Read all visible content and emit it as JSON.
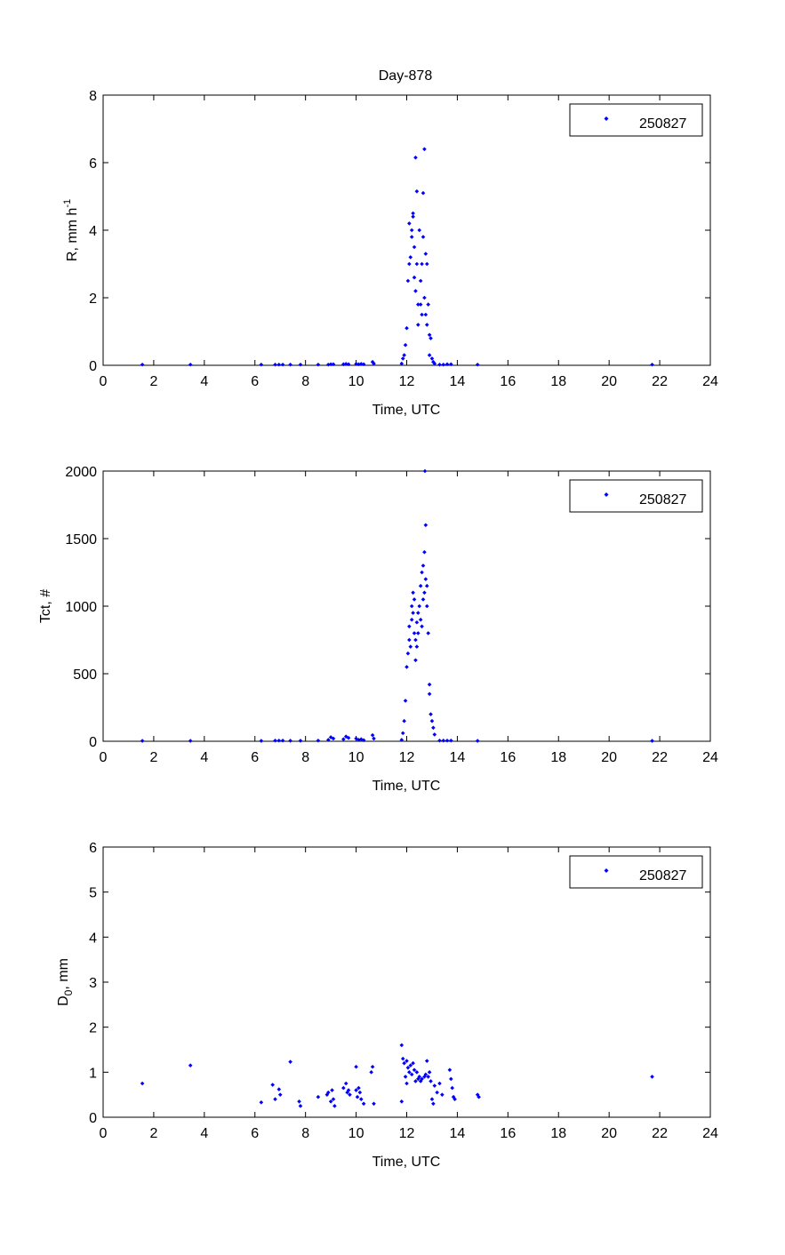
{
  "figure": {
    "title": "Day-878"
  },
  "chart_data": [
    {
      "type": "scatter",
      "title": "Day-878",
      "xlabel": "Time, UTC",
      "ylabel": "R, mm h",
      "ylabel_sup": "-1",
      "xlim": [
        0,
        24
      ],
      "ylim": [
        0,
        8
      ],
      "xticks": [
        "0",
        "2",
        "4",
        "6",
        "8",
        "10",
        "12",
        "14",
        "16",
        "18",
        "20",
        "22",
        "24"
      ],
      "yticks": [
        "0",
        "2",
        "4",
        "6",
        "8"
      ],
      "legend": {
        "entries": [
          "250827"
        ],
        "placement": "top-right"
      },
      "marker_color": "#0000ff",
      "series": [
        {
          "name": "250827",
          "points": [
            [
              1.55,
              0.02
            ],
            [
              3.45,
              0.02
            ],
            [
              6.25,
              0.02
            ],
            [
              6.8,
              0.02
            ],
            [
              6.95,
              0.02
            ],
            [
              7.1,
              0.02
            ],
            [
              7.4,
              0.02
            ],
            [
              7.8,
              0.02
            ],
            [
              8.5,
              0.02
            ],
            [
              8.9,
              0.02
            ],
            [
              9.0,
              0.03
            ],
            [
              9.1,
              0.03
            ],
            [
              9.5,
              0.03
            ],
            [
              9.6,
              0.04
            ],
            [
              9.7,
              0.03
            ],
            [
              10.0,
              0.04
            ],
            [
              10.1,
              0.03
            ],
            [
              10.2,
              0.04
            ],
            [
              10.3,
              0.03
            ],
            [
              10.65,
              0.1
            ],
            [
              10.7,
              0.05
            ],
            [
              11.8,
              0.05
            ],
            [
              11.85,
              0.2
            ],
            [
              11.9,
              0.3
            ],
            [
              11.95,
              0.6
            ],
            [
              12.0,
              1.1
            ],
            [
              12.05,
              2.5
            ],
            [
              12.1,
              3.0
            ],
            [
              12.1,
              4.2
            ],
            [
              12.15,
              3.2
            ],
            [
              12.2,
              4.0
            ],
            [
              12.2,
              3.8
            ],
            [
              12.25,
              4.5
            ],
            [
              12.25,
              4.4
            ],
            [
              12.3,
              3.5
            ],
            [
              12.3,
              2.6
            ],
            [
              12.35,
              2.2
            ],
            [
              12.35,
              6.15
            ],
            [
              12.4,
              5.15
            ],
            [
              12.4,
              3.0
            ],
            [
              12.45,
              1.8
            ],
            [
              12.45,
              1.2
            ],
            [
              12.5,
              4.0
            ],
            [
              12.55,
              2.5
            ],
            [
              12.55,
              1.8
            ],
            [
              12.6,
              3.0
            ],
            [
              12.6,
              1.5
            ],
            [
              12.65,
              5.1
            ],
            [
              12.65,
              3.8
            ],
            [
              12.7,
              6.4
            ],
            [
              12.7,
              2.0
            ],
            [
              12.75,
              3.3
            ],
            [
              12.75,
              1.5
            ],
            [
              12.8,
              3.0
            ],
            [
              12.8,
              1.2
            ],
            [
              12.85,
              1.8
            ],
            [
              12.9,
              0.9
            ],
            [
              12.9,
              0.3
            ],
            [
              12.95,
              0.8
            ],
            [
              13.0,
              0.2
            ],
            [
              13.05,
              0.1
            ],
            [
              13.1,
              0.05
            ],
            [
              13.3,
              0.02
            ],
            [
              13.45,
              0.02
            ],
            [
              13.6,
              0.03
            ],
            [
              13.75,
              0.03
            ],
            [
              14.8,
              0.02
            ],
            [
              21.7,
              0.02
            ]
          ]
        }
      ]
    },
    {
      "type": "scatter",
      "xlabel": "Time, UTC",
      "ylabel": "Tct, #",
      "xlim": [
        0,
        24
      ],
      "ylim": [
        0,
        2000
      ],
      "xticks": [
        "0",
        "2",
        "4",
        "6",
        "8",
        "10",
        "12",
        "14",
        "16",
        "18",
        "20",
        "22",
        "24"
      ],
      "yticks": [
        "0",
        "500",
        "1000",
        "1500",
        "2000"
      ],
      "legend": {
        "entries": [
          "250827"
        ],
        "placement": "top-right"
      },
      "marker_color": "#0000ff",
      "series": [
        {
          "name": "250827",
          "points": [
            [
              1.55,
              3
            ],
            [
              3.45,
              3
            ],
            [
              6.25,
              3
            ],
            [
              6.8,
              5
            ],
            [
              6.95,
              5
            ],
            [
              7.1,
              5
            ],
            [
              7.4,
              4
            ],
            [
              7.8,
              4
            ],
            [
              8.5,
              5
            ],
            [
              8.9,
              10
            ],
            [
              9.0,
              30
            ],
            [
              9.1,
              20
            ],
            [
              9.5,
              15
            ],
            [
              9.6,
              35
            ],
            [
              9.7,
              25
            ],
            [
              10.0,
              20
            ],
            [
              10.1,
              10
            ],
            [
              10.2,
              15
            ],
            [
              10.3,
              8
            ],
            [
              10.65,
              45
            ],
            [
              10.7,
              20
            ],
            [
              11.8,
              10
            ],
            [
              11.85,
              60
            ],
            [
              11.9,
              150
            ],
            [
              11.95,
              300
            ],
            [
              12.0,
              550
            ],
            [
              12.05,
              650
            ],
            [
              12.1,
              750
            ],
            [
              12.1,
              850
            ],
            [
              12.15,
              700
            ],
            [
              12.2,
              900
            ],
            [
              12.2,
              1000
            ],
            [
              12.25,
              1100
            ],
            [
              12.25,
              950
            ],
            [
              12.3,
              1050
            ],
            [
              12.3,
              800
            ],
            [
              12.35,
              750
            ],
            [
              12.35,
              600
            ],
            [
              12.4,
              880
            ],
            [
              12.4,
              700
            ],
            [
              12.45,
              950
            ],
            [
              12.45,
              800
            ],
            [
              12.5,
              1000
            ],
            [
              12.55,
              1150
            ],
            [
              12.55,
              900
            ],
            [
              12.6,
              1250
            ],
            [
              12.6,
              850
            ],
            [
              12.65,
              1050
            ],
            [
              12.65,
              1300
            ],
            [
              12.7,
              1400
            ],
            [
              12.7,
              1100
            ],
            [
              12.75,
              1600
            ],
            [
              12.75,
              1200
            ],
            [
              12.8,
              1150
            ],
            [
              12.8,
              1000
            ],
            [
              12.85,
              800
            ],
            [
              12.9,
              420
            ],
            [
              12.9,
              350
            ],
            [
              12.95,
              200
            ],
            [
              13.0,
              150
            ],
            [
              13.05,
              100
            ],
            [
              13.1,
              50
            ],
            [
              13.3,
              5
            ],
            [
              13.45,
              5
            ],
            [
              13.6,
              5
            ],
            [
              13.75,
              5
            ],
            [
              14.8,
              3
            ],
            [
              21.7,
              3
            ],
            [
              12.72,
              2000
            ]
          ]
        }
      ]
    },
    {
      "type": "scatter",
      "xlabel": "Time, UTC",
      "ylabel": "D",
      "ylabel_sub": "0",
      "ylabel_suffix": ", mm",
      "xlim": [
        0,
        24
      ],
      "ylim": [
        0,
        6
      ],
      "xticks": [
        "0",
        "2",
        "4",
        "6",
        "8",
        "10",
        "12",
        "14",
        "16",
        "18",
        "20",
        "22",
        "24"
      ],
      "yticks": [
        "0",
        "1",
        "2",
        "3",
        "4",
        "5",
        "6"
      ],
      "legend": {
        "entries": [
          "250827"
        ],
        "placement": "top-right"
      },
      "marker_color": "#0000ff",
      "series": [
        {
          "name": "250827",
          "points": [
            [
              1.55,
              0.75
            ],
            [
              3.45,
              1.15
            ],
            [
              6.25,
              0.33
            ],
            [
              6.7,
              0.72
            ],
            [
              6.8,
              0.4
            ],
            [
              6.95,
              0.62
            ],
            [
              7.0,
              0.5
            ],
            [
              7.4,
              1.23
            ],
            [
              7.75,
              0.35
            ],
            [
              7.8,
              0.25
            ],
            [
              8.5,
              0.45
            ],
            [
              8.85,
              0.5
            ],
            [
              8.9,
              0.55
            ],
            [
              9.0,
              0.35
            ],
            [
              9.05,
              0.6
            ],
            [
              9.1,
              0.4
            ],
            [
              9.15,
              0.25
            ],
            [
              9.5,
              0.65
            ],
            [
              9.6,
              0.75
            ],
            [
              9.65,
              0.55
            ],
            [
              9.7,
              0.6
            ],
            [
              9.75,
              0.5
            ],
            [
              10.0,
              0.6
            ],
            [
              10.0,
              1.12
            ],
            [
              10.05,
              0.45
            ],
            [
              10.1,
              0.65
            ],
            [
              10.15,
              0.55
            ],
            [
              10.2,
              0.4
            ],
            [
              10.3,
              0.3
            ],
            [
              10.6,
              1.0
            ],
            [
              10.65,
              1.12
            ],
            [
              10.7,
              0.3
            ],
            [
              11.8,
              0.35
            ],
            [
              11.8,
              1.6
            ],
            [
              11.85,
              1.3
            ],
            [
              11.9,
              1.2
            ],
            [
              11.95,
              0.9
            ],
            [
              12.0,
              1.25
            ],
            [
              12.0,
              0.75
            ],
            [
              12.05,
              1.1
            ],
            [
              12.1,
              1.0
            ],
            [
              12.15,
              1.15
            ],
            [
              12.2,
              0.95
            ],
            [
              12.25,
              1.2
            ],
            [
              12.3,
              1.05
            ],
            [
              12.35,
              0.8
            ],
            [
              12.4,
              1.0
            ],
            [
              12.45,
              0.85
            ],
            [
              12.5,
              0.9
            ],
            [
              12.55,
              0.8
            ],
            [
              12.6,
              0.85
            ],
            [
              12.7,
              0.9
            ],
            [
              12.75,
              0.95
            ],
            [
              12.8,
              1.25
            ],
            [
              12.85,
              0.9
            ],
            [
              12.9,
              1.0
            ],
            [
              12.95,
              0.8
            ],
            [
              13.0,
              0.4
            ],
            [
              13.05,
              0.3
            ],
            [
              13.1,
              0.7
            ],
            [
              13.2,
              0.55
            ],
            [
              13.3,
              0.75
            ],
            [
              13.4,
              0.5
            ],
            [
              13.7,
              1.05
            ],
            [
              13.75,
              0.85
            ],
            [
              13.8,
              0.65
            ],
            [
              13.85,
              0.45
            ],
            [
              13.9,
              0.4
            ],
            [
              14.8,
              0.5
            ],
            [
              14.85,
              0.45
            ],
            [
              21.7,
              0.9
            ]
          ]
        }
      ]
    }
  ]
}
